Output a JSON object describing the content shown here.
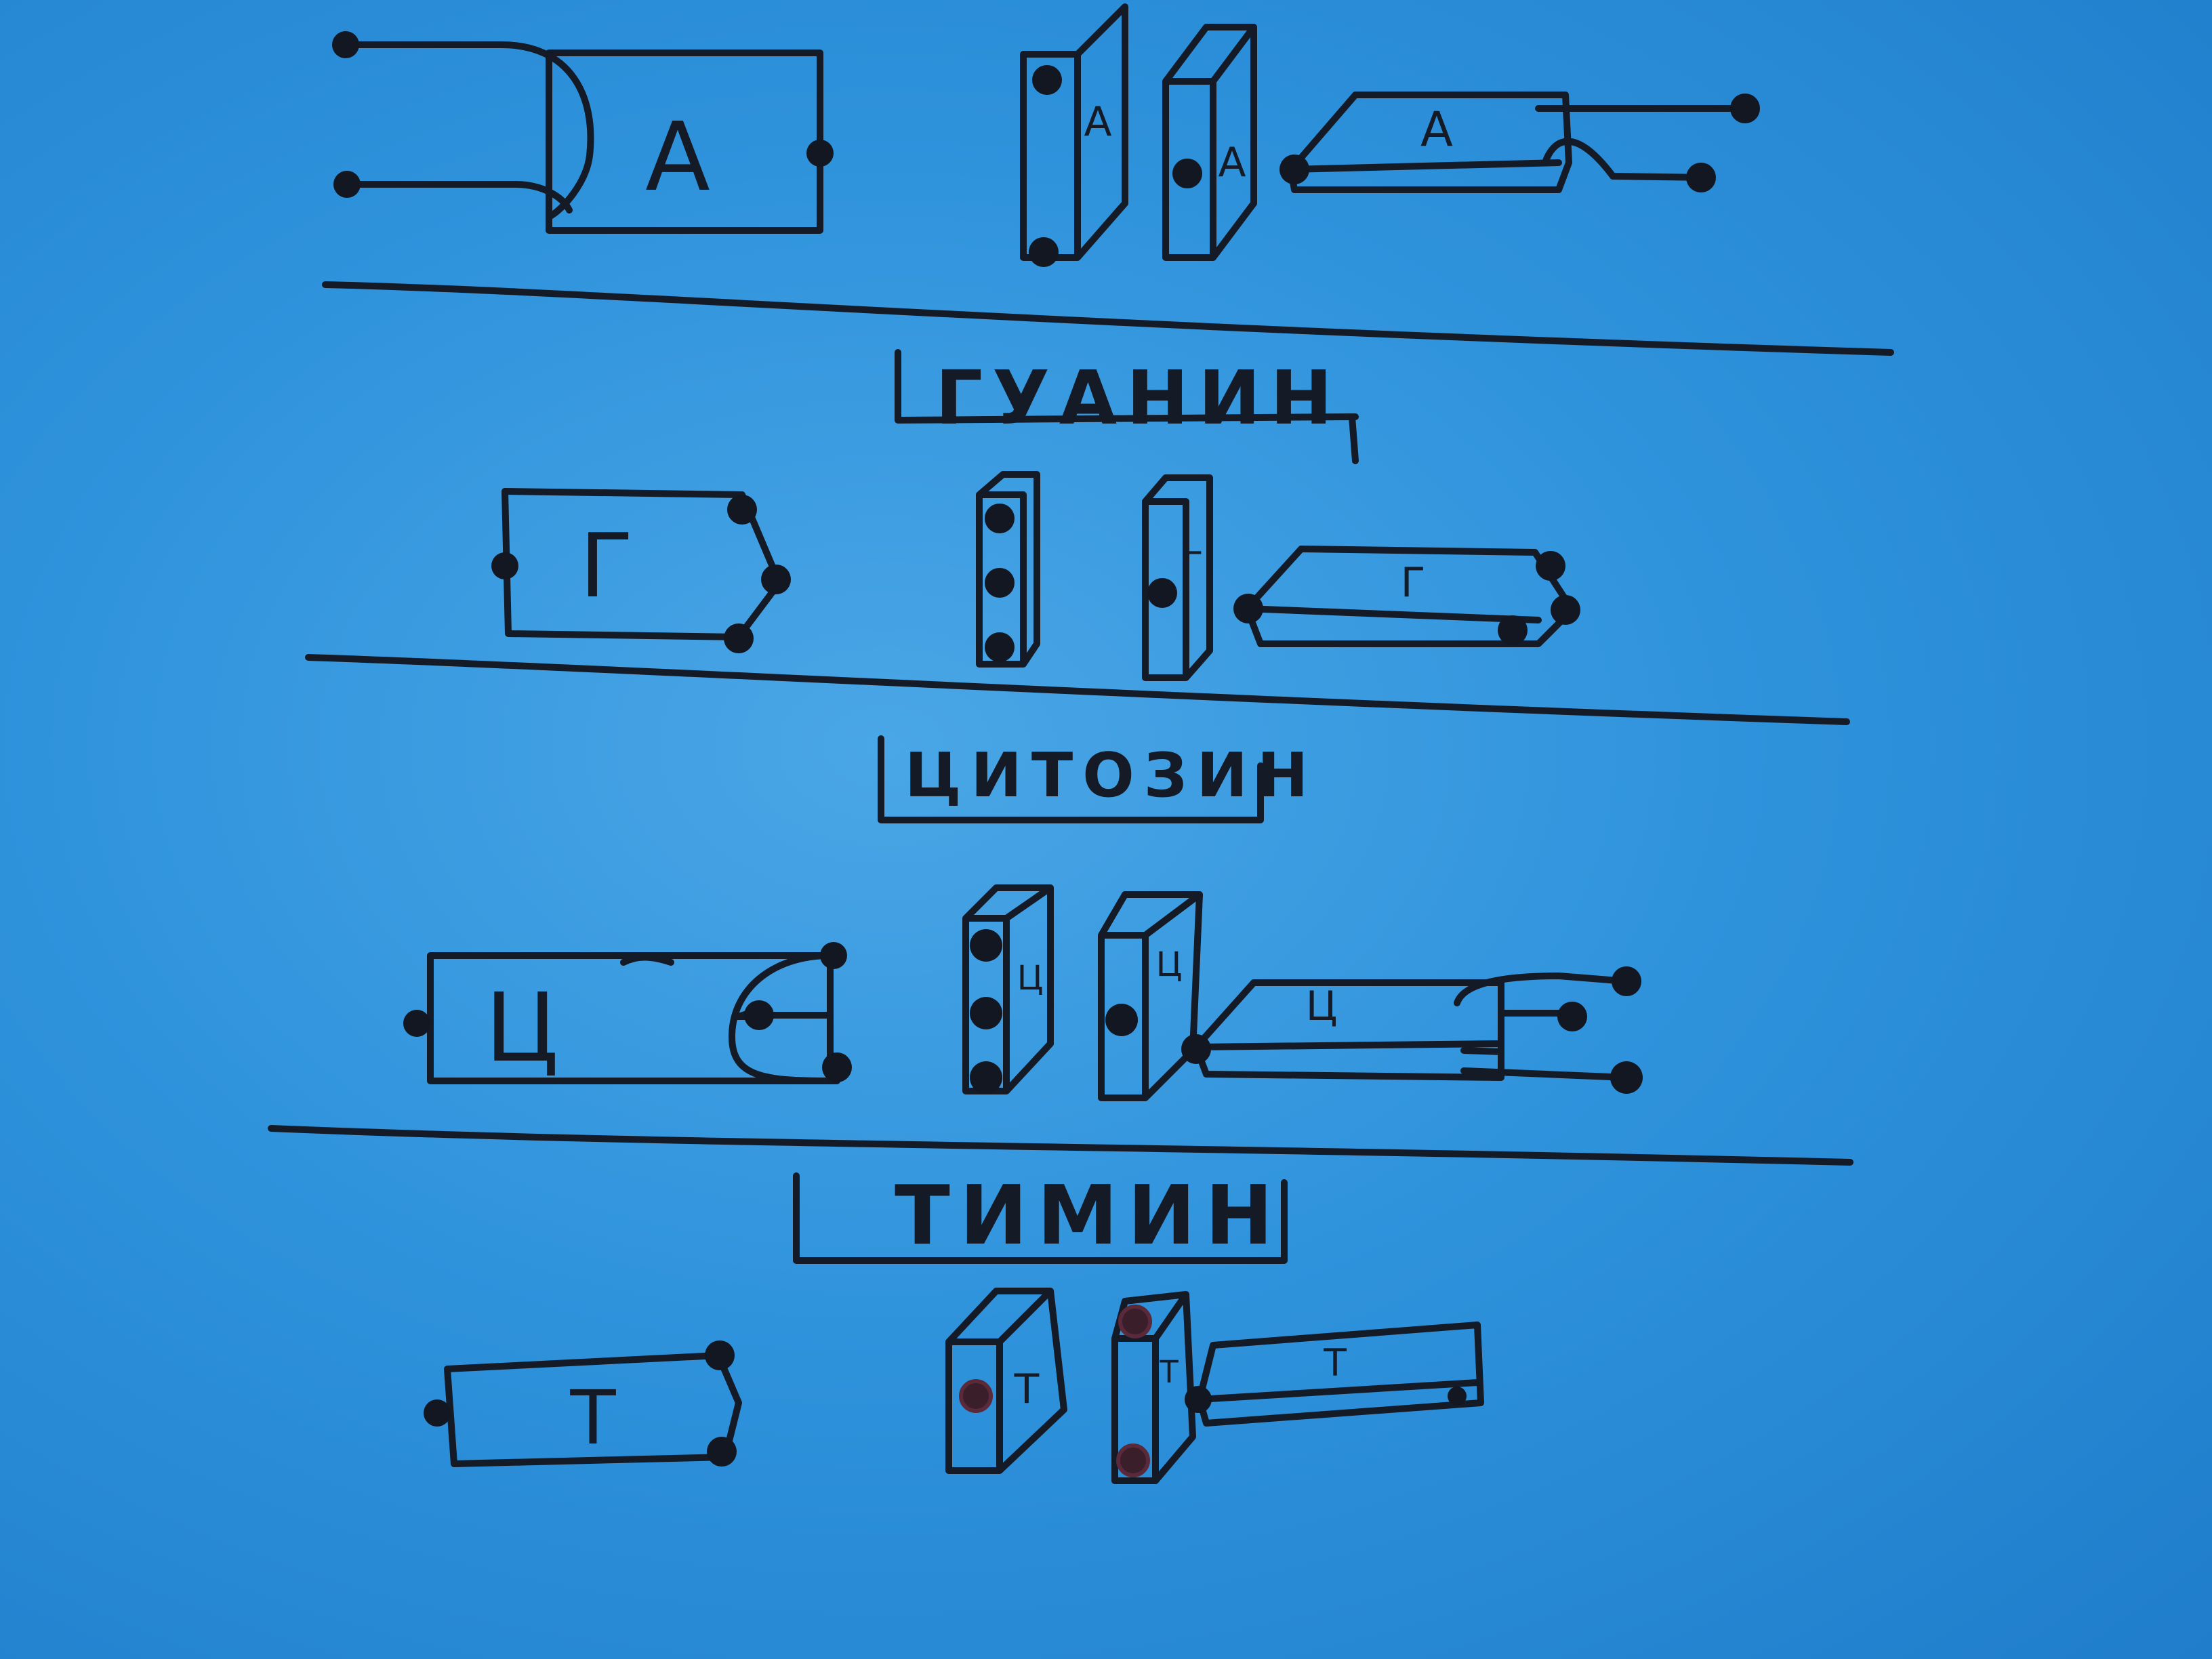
{
  "bases": [
    {
      "id": "adenine",
      "name": "",
      "symbol": "A"
    },
    {
      "id": "guanine",
      "name": "ГУАНИН",
      "symbol": "Г"
    },
    {
      "id": "cytosine",
      "name": "ЦИТОЗИН",
      "symbol": "Ц"
    },
    {
      "id": "thymine",
      "name": "ТИМИН",
      "symbol": "Т"
    }
  ],
  "colors": {
    "board": "#2f93dc",
    "ink": "#141a26"
  }
}
